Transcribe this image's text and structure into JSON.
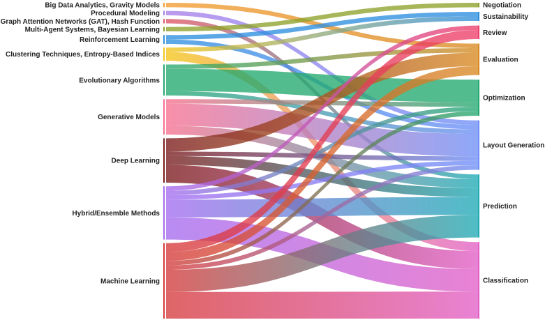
{
  "chart_data": {
    "type": "sankey",
    "sources": [
      {
        "id": "bigdata",
        "label": "Big Data Analytics, Gravity Models",
        "color": "#f39c30",
        "value": 2
      },
      {
        "id": "procedural",
        "label": "Procedural Modeling",
        "color": "#a97ee8",
        "value": 2
      },
      {
        "id": "gat",
        "label": "Graph Attention Networks (GAT), Hash Function",
        "color": "#e05565",
        "value": 2
      },
      {
        "id": "multiagent",
        "label": "Multi-Agent Systems, Bayesian Learning",
        "color": "#8fa12b",
        "value": 2
      },
      {
        "id": "rl",
        "label": "Reinforcement Learning",
        "color": "#2e8fe0",
        "value": 4
      },
      {
        "id": "clustering",
        "label": "Clustering Techniques, Entropy-Based Indices",
        "color": "#f5c518",
        "value": 6
      },
      {
        "id": "evo",
        "label": "Evolutionary Algorithms",
        "color": "#23a96f",
        "value": 14
      },
      {
        "id": "gen",
        "label": "Generative Models",
        "color": "#f7708f",
        "value": 16
      },
      {
        "id": "dl",
        "label": "Deep Learning",
        "color": "#7a1a1a",
        "value": 20
      },
      {
        "id": "hybrid",
        "label": "Hybrid/Ensemble Methods",
        "color": "#a46cf0",
        "value": 24
      },
      {
        "id": "ml",
        "label": "Machine Learning",
        "color": "#d63a3a",
        "value": 34
      }
    ],
    "targets": [
      {
        "id": "negotiation",
        "label": "Negotiation",
        "color": "#8fa12b",
        "value": 2
      },
      {
        "id": "sustainability",
        "label": "Sustainability",
        "color": "#2e8fe0",
        "value": 4
      },
      {
        "id": "review",
        "label": "Review",
        "color": "#ee3f6a",
        "value": 6
      },
      {
        "id": "evaluation",
        "label": "Evaluation",
        "color": "#d98a22",
        "value": 14
      },
      {
        "id": "optimization",
        "label": "Optimization",
        "color": "#23a96f",
        "value": 16
      },
      {
        "id": "layout",
        "label": "Layout Generation",
        "color": "#6f8ff7",
        "value": 22
      },
      {
        "id": "prediction",
        "label": "Prediction",
        "color": "#1faab5",
        "value": 28
      },
      {
        "id": "classification",
        "label": "Classification",
        "color": "#e25fc7",
        "value": 34
      }
    ],
    "links": [
      {
        "source": "bigdata",
        "target": "evaluation",
        "value": 2
      },
      {
        "source": "procedural",
        "target": "layout",
        "value": 2
      },
      {
        "source": "gat",
        "target": "prediction",
        "value": 2
      },
      {
        "source": "multiagent",
        "target": "negotiation",
        "value": 2
      },
      {
        "source": "rl",
        "target": "sustainability",
        "value": 2
      },
      {
        "source": "rl",
        "target": "layout",
        "value": 2
      },
      {
        "source": "clustering",
        "target": "sustainability",
        "value": 2
      },
      {
        "source": "clustering",
        "target": "classification",
        "value": 4
      },
      {
        "source": "evo",
        "target": "evaluation",
        "value": 2
      },
      {
        "source": "evo",
        "target": "optimization",
        "value": 10
      },
      {
        "source": "evo",
        "target": "layout",
        "value": 2
      },
      {
        "source": "gen",
        "target": "optimization",
        "value": 2
      },
      {
        "source": "gen",
        "target": "layout",
        "value": 10
      },
      {
        "source": "gen",
        "target": "prediction",
        "value": 4
      },
      {
        "source": "dl",
        "target": "evaluation",
        "value": 6
      },
      {
        "source": "dl",
        "target": "layout",
        "value": 2
      },
      {
        "source": "dl",
        "target": "prediction",
        "value": 4
      },
      {
        "source": "dl",
        "target": "classification",
        "value": 8
      },
      {
        "source": "hybrid",
        "target": "review",
        "value": 2
      },
      {
        "source": "hybrid",
        "target": "optimization",
        "value": 2
      },
      {
        "source": "hybrid",
        "target": "layout",
        "value": 2
      },
      {
        "source": "hybrid",
        "target": "prediction",
        "value": 8
      },
      {
        "source": "hybrid",
        "target": "classification",
        "value": 10
      },
      {
        "source": "ml",
        "target": "review",
        "value": 4
      },
      {
        "source": "ml",
        "target": "evaluation",
        "value": 4
      },
      {
        "source": "ml",
        "target": "optimization",
        "value": 2
      },
      {
        "source": "ml",
        "target": "layout",
        "value": 2
      },
      {
        "source": "ml",
        "target": "prediction",
        "value": 10
      },
      {
        "source": "ml",
        "target": "classification",
        "value": 12
      }
    ]
  }
}
